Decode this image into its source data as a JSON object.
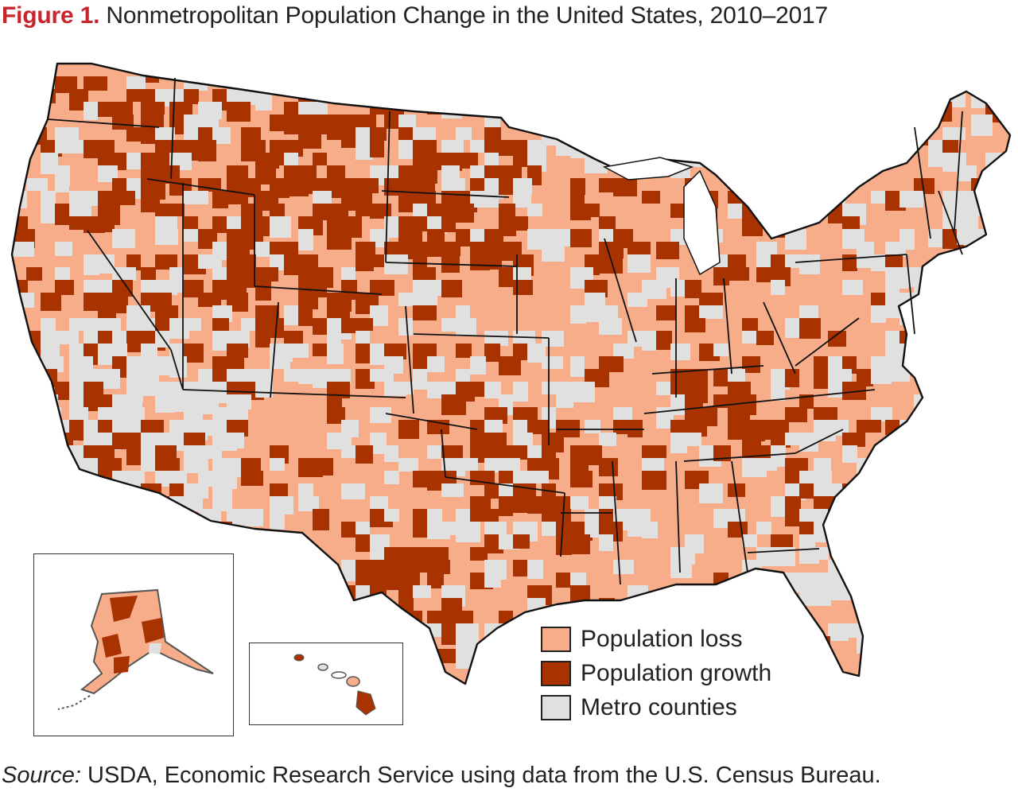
{
  "figure": {
    "label": "Figure 1.",
    "title": "Nonmetropolitan Population Change in the United States, 2010–2017"
  },
  "colors": {
    "loss": "#f7ad8a",
    "growth": "#a83200",
    "metro": "#e0e0e0",
    "border": "#111111",
    "label_accent": "#c8252c"
  },
  "legend": [
    {
      "key": "loss",
      "label": "Population loss"
    },
    {
      "key": "growth",
      "label": "Population growth"
    },
    {
      "key": "metro",
      "label": "Metro counties"
    }
  ],
  "insets": [
    {
      "name": "Alaska"
    },
    {
      "name": "Hawaii"
    }
  ],
  "source": {
    "label": "Source:",
    "text": " USDA, Economic Research Service using data from the U.S. Census Bureau."
  }
}
